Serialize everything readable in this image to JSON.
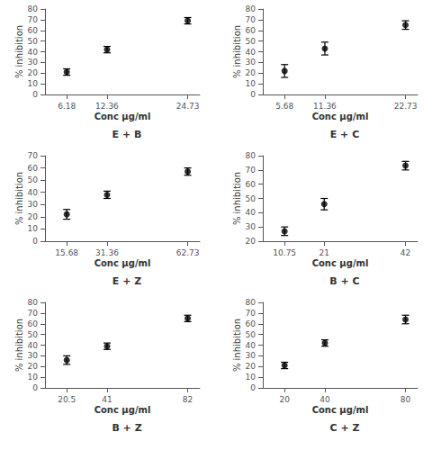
{
  "chart_data": [
    {
      "type": "scatter",
      "title": "E + B",
      "xlabel": "Conc µg/ml",
      "ylabel": "% inhibition",
      "x": [
        6.18,
        12.36,
        24.73
      ],
      "values": [
        21,
        42,
        69
      ],
      "yerr": [
        3,
        3,
        3
      ],
      "xlim": [
        2.841,
        26.585
      ],
      "xticks": [
        6.18,
        12.36,
        24.73
      ],
      "ylim": [
        0,
        80
      ],
      "yticks": [
        0,
        10,
        20,
        30,
        40,
        50,
        60,
        70,
        80
      ],
      "color": "black",
      "marker": "circle",
      "grid": false
    },
    {
      "type": "scatter",
      "title": "E + C",
      "xlabel": "Conc µg/ml",
      "ylabel": "% inhibition",
      "x": [
        5.68,
        11.36,
        22.73
      ],
      "values": [
        22,
        43,
        65
      ],
      "yerr": [
        6,
        6,
        4
      ],
      "xlim": [
        2.611,
        24.435
      ],
      "xticks": [
        5.68,
        11.36,
        22.73
      ],
      "ylim": [
        0,
        80
      ],
      "yticks": [
        0,
        10,
        20,
        30,
        40,
        50,
        60,
        70,
        80
      ],
      "color": "black",
      "marker": "circle",
      "grid": false
    },
    {
      "type": "scatter",
      "title": "E + Z",
      "xlabel": "Conc µg/ml",
      "ylabel": "% inhibition",
      "x": [
        15.68,
        31.36,
        62.73
      ],
      "values": [
        22,
        38,
        57
      ],
      "yerr": [
        4,
        3,
        3
      ],
      "xlim": [
        7.211,
        67.435
      ],
      "xticks": [
        15.68,
        31.36,
        62.73
      ],
      "ylim": [
        0,
        70
      ],
      "yticks": [
        0,
        10,
        20,
        30,
        40,
        50,
        60,
        70
      ],
      "color": "black",
      "marker": "circle",
      "grid": false
    },
    {
      "type": "scatter",
      "title": "B + C",
      "xlabel": "Conc µg/ml",
      "ylabel": "% inhibition",
      "x": [
        10.75,
        21,
        42
      ],
      "values": [
        27,
        46,
        73
      ],
      "yerr": [
        3,
        4,
        3
      ],
      "xlim": [
        5.125,
        45.125
      ],
      "xticks": [
        10.75,
        21,
        42
      ],
      "ylim": [
        20,
        80
      ],
      "yticks": [
        20,
        30,
        40,
        50,
        60,
        70,
        80
      ],
      "color": "black",
      "marker": "circle",
      "grid": false
    },
    {
      "type": "scatter",
      "title": "B + Z",
      "xlabel": "Conc µg/ml",
      "ylabel": "% inhibition",
      "x": [
        20.5,
        41,
        82
      ],
      "values": [
        26,
        39,
        65
      ],
      "yerr": [
        4,
        3,
        3
      ],
      "xlim": [
        9.43,
        88.15
      ],
      "xticks": [
        20.5,
        41,
        82
      ],
      "ylim": [
        0,
        80
      ],
      "yticks": [
        0,
        10,
        20,
        30,
        40,
        50,
        60,
        70,
        80
      ],
      "color": "black",
      "marker": "circle",
      "grid": false
    },
    {
      "type": "scatter",
      "title": "C + Z",
      "xlabel": "Conc µg/ml",
      "ylabel": "% inhibition",
      "x": [
        20,
        40,
        80
      ],
      "values": [
        21,
        42,
        64
      ],
      "yerr": [
        3,
        3,
        4
      ],
      "xlim": [
        9.2,
        86
      ],
      "xticks": [
        20,
        40,
        80
      ],
      "ylim": [
        0,
        80
      ],
      "yticks": [
        0,
        10,
        20,
        30,
        40,
        50,
        60,
        70,
        80
      ],
      "color": "black",
      "marker": "circle",
      "grid": false
    }
  ]
}
